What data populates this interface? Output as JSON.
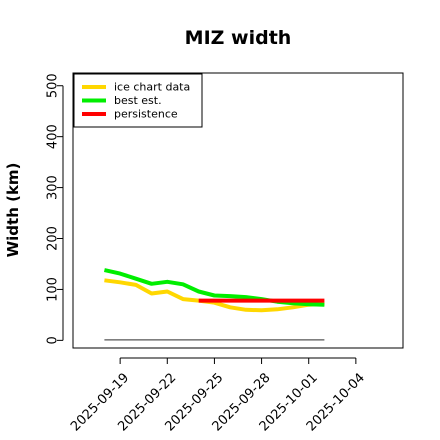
{
  "chart_data": {
    "type": "line",
    "title": "MIZ width",
    "xlabel": "",
    "ylabel": "Width (km)",
    "xlim": [
      "2025-09-16",
      "2025-10-07"
    ],
    "ylim": [
      -15,
      525
    ],
    "x_ticks": [
      "2025-09-19",
      "2025-09-22",
      "2025-09-25",
      "2025-09-28",
      "2025-10-01",
      "2025-10-04"
    ],
    "y_ticks": [
      0,
      100,
      200,
      300,
      400,
      500
    ],
    "legend_position": "top-left",
    "grid": false,
    "series": [
      {
        "name": "ice chart data",
        "color": "#FFD700",
        "x": [
          "2025-09-18",
          "2025-09-19",
          "2025-09-20",
          "2025-09-21",
          "2025-09-22",
          "2025-09-23",
          "2025-09-24",
          "2025-09-25",
          "2025-09-26",
          "2025-09-27",
          "2025-09-28",
          "2025-09-29",
          "2025-09-30",
          "2025-10-01",
          "2025-10-02"
        ],
        "values": [
          118,
          114,
          109,
          92,
          96,
          81,
          78,
          74,
          65,
          60,
          59,
          61,
          65,
          70,
          72
        ]
      },
      {
        "name": "best est.",
        "color": "#00EE00",
        "x": [
          "2025-09-18",
          "2025-09-19",
          "2025-09-20",
          "2025-09-21",
          "2025-09-22",
          "2025-09-23",
          "2025-09-24",
          "2025-09-25",
          "2025-09-26",
          "2025-09-27",
          "2025-09-28",
          "2025-09-29",
          "2025-09-30",
          "2025-10-01",
          "2025-10-02"
        ],
        "values": [
          138,
          131,
          121,
          111,
          115,
          110,
          96,
          88,
          87,
          85,
          81,
          76,
          73,
          71,
          70
        ]
      },
      {
        "name": "persistence",
        "color": "#FF0000",
        "x": [
          "2025-09-24",
          "2025-10-02"
        ],
        "values": [
          78,
          78
        ]
      },
      {
        "name": "",
        "color": "#555555",
        "x": [
          "2025-09-18",
          "2025-10-02"
        ],
        "values": [
          1,
          1
        ]
      }
    ]
  }
}
